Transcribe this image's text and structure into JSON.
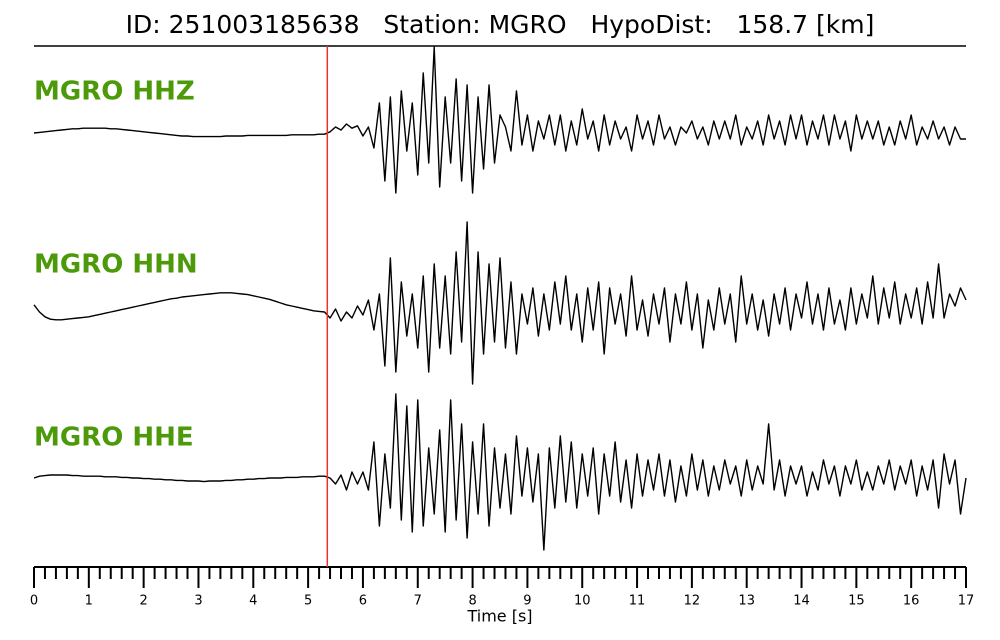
{
  "chart_data": {
    "type": "seismogram",
    "title": "ID: 251003185638   Station: MGRO   HypoDist:   158.7 [km]",
    "xlabel": "Time [s]",
    "xlim": [
      0,
      17
    ],
    "xticks": [
      0,
      1,
      2,
      3,
      4,
      5,
      6,
      7,
      8,
      9,
      10,
      11,
      12,
      13,
      14,
      15,
      16,
      17
    ],
    "minor_ticks_per_major": 5,
    "ylim": [
      -1.5,
      1.5
    ],
    "pick": {
      "x": 5.35,
      "color": "#e8332a"
    },
    "label_color": "#4c9a0a",
    "x": [
      0,
      0.1,
      0.2,
      0.3,
      0.4,
      0.5,
      0.6,
      0.7,
      0.8,
      0.9,
      1,
      1.1,
      1.2,
      1.3,
      1.4,
      1.5,
      1.6,
      1.7,
      1.8,
      1.9,
      2,
      2.1,
      2.2,
      2.3,
      2.4,
      2.5,
      2.6,
      2.7,
      2.8,
      2.9,
      3,
      3.1,
      3.2,
      3.3,
      3.4,
      3.5,
      3.6,
      3.7,
      3.8,
      3.9,
      4,
      4.1,
      4.2,
      4.3,
      4.4,
      4.5,
      4.6,
      4.7,
      4.8,
      4.9,
      5,
      5.1,
      5.2,
      5.3,
      5.4,
      5.5,
      5.6,
      5.7,
      5.8,
      5.9,
      6,
      6.1,
      6.2,
      6.3,
      6.4,
      6.5,
      6.6,
      6.7,
      6.8,
      6.9,
      7,
      7.1,
      7.2,
      7.3,
      7.4,
      7.5,
      7.6,
      7.7,
      7.8,
      7.9,
      8,
      8.1,
      8.2,
      8.3,
      8.4,
      8.5,
      8.6,
      8.7,
      8.8,
      8.9,
      9,
      9.1,
      9.2,
      9.3,
      9.4,
      9.5,
      9.6,
      9.7,
      9.8,
      9.9,
      10,
      10.1,
      10.2,
      10.3,
      10.4,
      10.5,
      10.6,
      10.7,
      10.8,
      10.9,
      11,
      11.1,
      11.2,
      11.3,
      11.4,
      11.5,
      11.6,
      11.7,
      11.8,
      11.9,
      12,
      12.1,
      12.2,
      12.3,
      12.4,
      12.5,
      12.6,
      12.7,
      12.8,
      12.9,
      13,
      13.1,
      13.2,
      13.3,
      13.4,
      13.5,
      13.6,
      13.7,
      13.8,
      13.9,
      14,
      14.1,
      14.2,
      14.3,
      14.4,
      14.5,
      14.6,
      14.7,
      14.8,
      14.9,
      15,
      15.1,
      15.2,
      15.3,
      15.4,
      15.5,
      15.6,
      15.7,
      15.8,
      15.9,
      16,
      16.1,
      16.2,
      16.3,
      16.4,
      16.5,
      16.6,
      16.7,
      16.8,
      16.9,
      17
    ],
    "series": [
      {
        "name": "MGRO HHZ",
        "color": "#000000",
        "values": [
          0.0,
          0.01,
          0.02,
          0.03,
          0.04,
          0.05,
          0.06,
          0.07,
          0.07,
          0.08,
          0.08,
          0.08,
          0.08,
          0.08,
          0.07,
          0.07,
          0.06,
          0.05,
          0.04,
          0.03,
          0.02,
          0.01,
          0.0,
          -0.01,
          -0.02,
          -0.03,
          -0.04,
          -0.05,
          -0.05,
          -0.06,
          -0.06,
          -0.06,
          -0.06,
          -0.06,
          -0.06,
          -0.05,
          -0.05,
          -0.05,
          -0.05,
          -0.04,
          -0.04,
          -0.04,
          -0.04,
          -0.04,
          -0.04,
          -0.04,
          -0.04,
          -0.03,
          -0.03,
          -0.03,
          -0.03,
          -0.03,
          -0.02,
          -0.02,
          0.02,
          0.1,
          0.05,
          0.15,
          0.08,
          0.12,
          -0.05,
          0.1,
          -0.25,
          0.5,
          -0.8,
          0.6,
          -1.0,
          0.7,
          -0.3,
          0.5,
          -0.7,
          1.0,
          -0.5,
          1.43,
          -0.9,
          0.6,
          -0.5,
          0.9,
          -0.8,
          0.8,
          -1.0,
          0.6,
          -0.6,
          0.8,
          -0.5,
          0.3,
          0.1,
          -0.3,
          0.7,
          -0.2,
          0.3,
          -0.3,
          0.2,
          -0.1,
          0.3,
          -0.2,
          0.3,
          -0.3,
          0.2,
          -0.2,
          0.4,
          -0.1,
          0.2,
          -0.3,
          0.3,
          -0.2,
          0.2,
          -0.1,
          0.1,
          -0.3,
          0.3,
          -0.1,
          0.2,
          -0.2,
          0.3,
          -0.1,
          0.1,
          -0.2,
          0.1,
          0.0,
          0.2,
          -0.1,
          0.1,
          -0.2,
          0.2,
          -0.1,
          0.2,
          -0.1,
          0.3,
          -0.2,
          0.1,
          -0.1,
          0.2,
          -0.2,
          0.3,
          -0.1,
          0.2,
          -0.2,
          0.3,
          -0.1,
          0.3,
          -0.2,
          0.2,
          -0.1,
          0.3,
          -0.2,
          0.3,
          -0.1,
          0.2,
          -0.3,
          0.3,
          -0.1,
          0.2,
          -0.1,
          0.2,
          -0.2,
          0.1,
          -0.2,
          0.2,
          -0.1,
          0.3,
          -0.2,
          0.1,
          -0.1,
          0.2,
          -0.1,
          0.1,
          -0.2,
          0.1,
          -0.1,
          -0.1
        ]
      },
      {
        "name": "MGRO HHN",
        "color": "#000000",
        "values": [
          0.12,
          0.0,
          -0.08,
          -0.12,
          -0.13,
          -0.13,
          -0.12,
          -0.11,
          -0.1,
          -0.09,
          -0.08,
          -0.06,
          -0.04,
          -0.02,
          0.0,
          0.02,
          0.04,
          0.06,
          0.08,
          0.1,
          0.12,
          0.14,
          0.16,
          0.18,
          0.2,
          0.22,
          0.23,
          0.25,
          0.26,
          0.27,
          0.28,
          0.29,
          0.3,
          0.31,
          0.32,
          0.32,
          0.32,
          0.31,
          0.3,
          0.29,
          0.27,
          0.25,
          0.23,
          0.21,
          0.18,
          0.15,
          0.12,
          0.1,
          0.08,
          0.06,
          0.04,
          0.02,
          0.01,
          0.0,
          -0.1,
          0.05,
          -0.15,
          0.0,
          -0.1,
          0.1,
          -0.05,
          0.2,
          -0.3,
          0.3,
          -0.9,
          0.9,
          -1.0,
          0.5,
          -0.4,
          0.3,
          -0.6,
          0.6,
          -1.0,
          0.8,
          -0.6,
          0.6,
          -0.7,
          1.0,
          -0.5,
          1.5,
          -1.2,
          1.0,
          -0.7,
          0.8,
          -0.5,
          0.9,
          -0.6,
          0.5,
          -0.7,
          0.3,
          -0.2,
          0.4,
          -0.4,
          0.3,
          -0.3,
          0.5,
          -0.2,
          0.6,
          -0.3,
          0.3,
          -0.5,
          0.4,
          -0.3,
          0.5,
          -0.7,
          0.4,
          -0.2,
          0.3,
          -0.4,
          0.6,
          -0.3,
          0.2,
          -0.4,
          0.3,
          -0.2,
          0.4,
          -0.5,
          0.3,
          -0.2,
          0.5,
          -0.3,
          0.3,
          -0.6,
          0.2,
          -0.3,
          0.4,
          -0.2,
          0.3,
          -0.5,
          0.6,
          -0.2,
          0.3,
          -0.3,
          0.2,
          -0.4,
          0.3,
          -0.2,
          0.4,
          -0.3,
          0.3,
          -0.1,
          0.5,
          -0.2,
          0.3,
          -0.3,
          0.4,
          -0.2,
          0.2,
          -0.3,
          0.4,
          -0.2,
          0.3,
          -0.1,
          0.6,
          -0.2,
          0.4,
          -0.1,
          0.5,
          -0.2,
          0.3,
          -0.1,
          0.4,
          -0.2,
          0.5,
          -0.1,
          0.8,
          -0.1,
          0.3,
          0.1,
          0.4,
          0.2
        ]
      },
      {
        "name": "MGRO HHE",
        "color": "#000000",
        "values": [
          0.0,
          0.03,
          0.04,
          0.05,
          0.05,
          0.05,
          0.05,
          0.04,
          0.04,
          0.03,
          0.03,
          0.03,
          0.03,
          0.02,
          0.02,
          0.02,
          0.01,
          0.01,
          0.0,
          0.0,
          -0.01,
          -0.01,
          -0.02,
          -0.02,
          -0.03,
          -0.03,
          -0.04,
          -0.04,
          -0.05,
          -0.05,
          -0.05,
          -0.06,
          -0.05,
          -0.05,
          -0.05,
          -0.04,
          -0.04,
          -0.03,
          -0.03,
          -0.02,
          -0.02,
          -0.01,
          -0.01,
          0.0,
          0.0,
          0.0,
          0.01,
          0.01,
          0.01,
          0.02,
          0.02,
          0.02,
          0.03,
          0.03,
          0.0,
          -0.1,
          0.05,
          -0.2,
          0.1,
          -0.1,
          0.1,
          -0.2,
          0.6,
          -0.8,
          0.4,
          -0.5,
          1.4,
          -0.7,
          1.2,
          -0.9,
          1.3,
          -0.8,
          0.5,
          -0.6,
          0.8,
          -0.9,
          1.3,
          -0.7,
          0.9,
          -1.0,
          0.6,
          -0.6,
          0.9,
          -0.8,
          0.5,
          -0.5,
          0.4,
          -0.6,
          0.7,
          -0.3,
          0.5,
          -0.4,
          0.4,
          -1.2,
          0.5,
          -0.5,
          0.7,
          -0.4,
          0.6,
          -0.5,
          0.4,
          -0.3,
          0.5,
          -0.6,
          0.4,
          -0.3,
          0.6,
          -0.4,
          0.3,
          -0.5,
          0.4,
          -0.3,
          0.3,
          -0.2,
          0.4,
          -0.3,
          0.3,
          -0.4,
          0.2,
          -0.3,
          0.4,
          -0.2,
          0.3,
          -0.3,
          0.2,
          -0.2,
          0.3,
          -0.1,
          0.2,
          -0.3,
          0.3,
          -0.2,
          0.2,
          -0.1,
          0.9,
          -0.2,
          0.3,
          -0.3,
          0.2,
          -0.1,
          0.2,
          -0.3,
          0.1,
          -0.2,
          0.3,
          -0.1,
          0.2,
          -0.3,
          0.2,
          -0.1,
          0.3,
          -0.2,
          0.1,
          -0.2,
          0.2,
          -0.1,
          0.3,
          -0.2,
          0.2,
          -0.1,
          0.3,
          -0.3,
          0.2,
          -0.2,
          0.3,
          -0.5,
          0.4,
          -0.1,
          0.3,
          -0.6,
          0.0
        ]
      }
    ]
  }
}
